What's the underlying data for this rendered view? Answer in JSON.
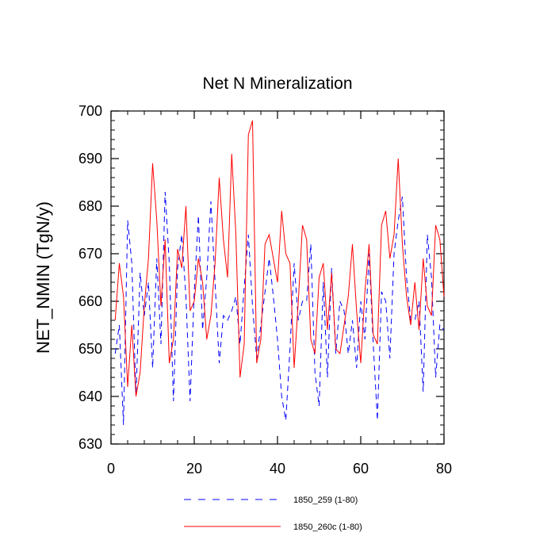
{
  "chart_data": {
    "type": "line",
    "title": "Net N Mineralization",
    "xlabel": "",
    "ylabel": "NET_NMIN  (TgN/y)",
    "xlim": [
      0,
      80
    ],
    "ylim": [
      630,
      700
    ],
    "xticks": [
      "0",
      "20",
      "40",
      "60",
      "80"
    ],
    "yticks": [
      "630",
      "640",
      "650",
      "660",
      "670",
      "680",
      "690",
      "700"
    ],
    "x": [
      1,
      2,
      3,
      4,
      5,
      6,
      7,
      8,
      9,
      10,
      11,
      12,
      13,
      14,
      15,
      16,
      17,
      18,
      19,
      20,
      21,
      22,
      23,
      24,
      25,
      26,
      27,
      28,
      29,
      30,
      31,
      32,
      33,
      34,
      35,
      36,
      37,
      38,
      39,
      40,
      41,
      42,
      43,
      44,
      45,
      46,
      47,
      48,
      49,
      50,
      51,
      52,
      53,
      54,
      55,
      56,
      57,
      58,
      59,
      60,
      61,
      62,
      63,
      64,
      65,
      66,
      67,
      68,
      69,
      70,
      71,
      72,
      73,
      74,
      75,
      76,
      77,
      78,
      79,
      80
    ],
    "series": [
      {
        "name": "1850_259 (1-80)",
        "color": "#0000ff",
        "style": "dashed",
        "values": [
          649,
          655,
          634,
          677,
          668,
          640,
          666,
          657,
          664,
          646,
          669,
          651,
          683,
          668,
          639,
          667,
          674,
          661,
          639,
          662,
          678,
          654,
          665,
          681,
          664,
          647,
          657,
          656,
          658,
          661,
          651,
          663,
          674,
          659,
          648,
          655,
          662,
          669,
          661,
          652,
          640,
          635,
          650,
          668,
          656,
          660,
          660,
          672,
          645,
          638,
          664,
          644,
          667,
          649,
          660,
          658,
          649,
          656,
          646,
          660,
          652,
          670,
          651,
          635,
          662,
          660,
          648,
          670,
          677,
          682,
          665,
          656,
          656,
          660,
          641,
          674,
          665,
          644,
          655,
          654
        ]
      },
      {
        "name": "1850_260c (1-80)",
        "color": "#ff0000",
        "style": "solid",
        "values": [
          656,
          668,
          661,
          642,
          655,
          640,
          645,
          659,
          669,
          689,
          677,
          659,
          673,
          647,
          652,
          671,
          667,
          680,
          658,
          660,
          669,
          664,
          652,
          657,
          668,
          686,
          673,
          665,
          691,
          674,
          644,
          651,
          695,
          698,
          647,
          652,
          672,
          674,
          669,
          664,
          679,
          670,
          668,
          646,
          660,
          676,
          673,
          652,
          649,
          665,
          668,
          654,
          666,
          650,
          649,
          655,
          661,
          672,
          658,
          647,
          662,
          672,
          653,
          651,
          676,
          679,
          669,
          674,
          690,
          672,
          661,
          655,
          664,
          654,
          669,
          659,
          657,
          676,
          673,
          661
        ]
      }
    ],
    "legend": {
      "placement": "bottom",
      "entries": [
        "1850_259 (1-80)",
        "1850_260c (1-80)"
      ]
    }
  }
}
